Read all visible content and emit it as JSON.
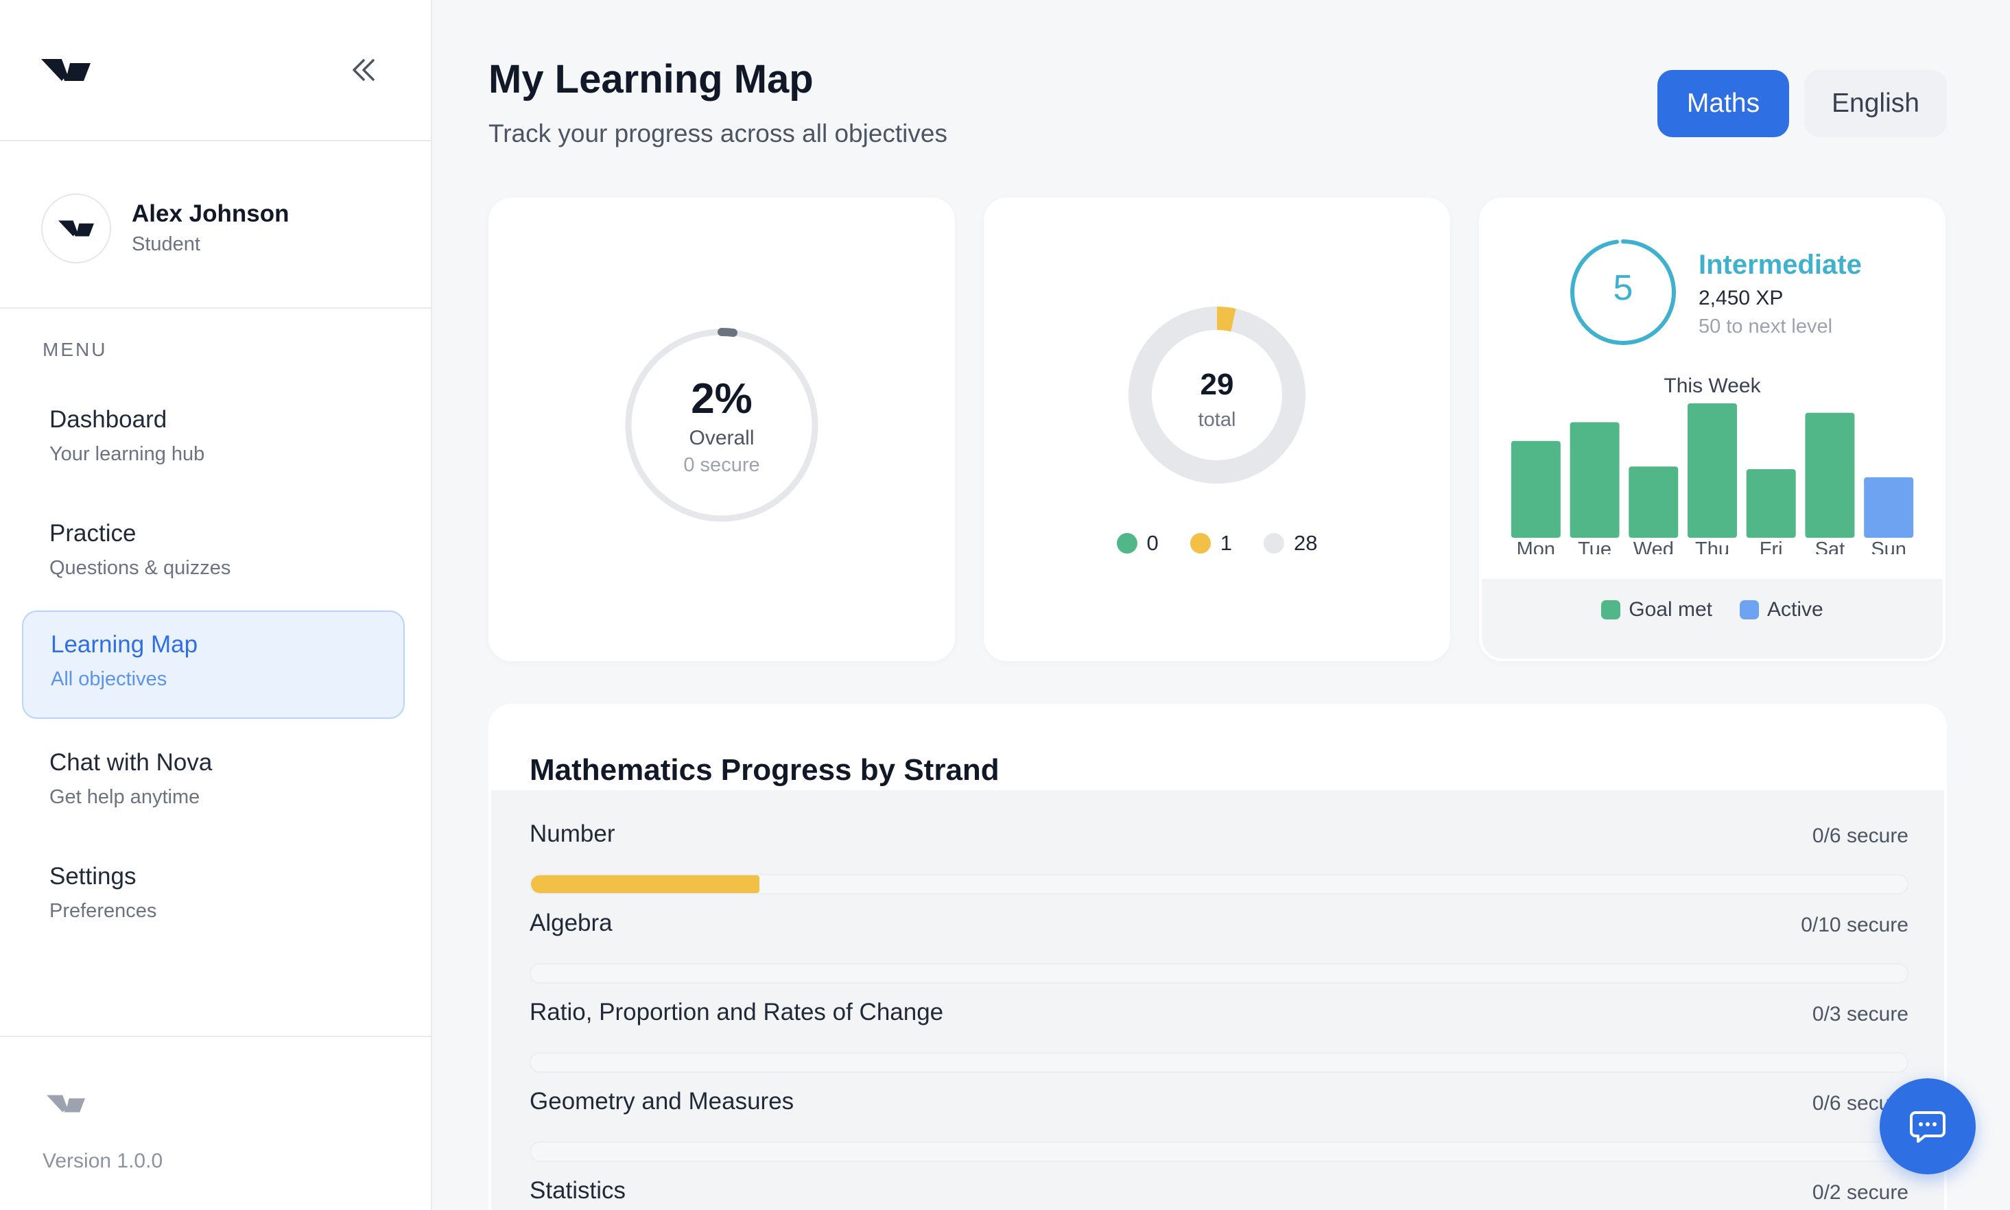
{
  "brand": {
    "logo_icon": "brand-logo-icon",
    "version": "Version 1.0.0"
  },
  "user": {
    "name": "Alex Johnson",
    "role": "Student"
  },
  "menu": {
    "label": "MENU",
    "items": [
      {
        "title": "Dashboard",
        "subtitle": "Your learning hub",
        "active": false
      },
      {
        "title": "Practice",
        "subtitle": "Questions & quizzes",
        "active": false
      },
      {
        "title": "Learning Map",
        "subtitle": "All objectives",
        "active": true
      },
      {
        "title": "Chat with Nova",
        "subtitle": "Get help anytime",
        "active": false
      },
      {
        "title": "Settings",
        "subtitle": "Preferences",
        "active": false
      }
    ]
  },
  "header": {
    "title": "My Learning Map",
    "subtitle": "Track your progress across all objectives",
    "subjects": [
      {
        "label": "Maths",
        "selected": true
      },
      {
        "label": "English",
        "selected": false
      }
    ]
  },
  "overall": {
    "value": "2%",
    "label": "Overall",
    "secure": "0 secure",
    "progress": 0.02
  },
  "objectives": {
    "total": "29",
    "total_label": "total",
    "breakdown": [
      {
        "count": "0",
        "color": "#52b788",
        "value": 0
      },
      {
        "count": "1",
        "color": "#f2bf47",
        "value": 1
      },
      {
        "count": "28",
        "color": "#e5e7eb",
        "value": 28
      }
    ]
  },
  "level": {
    "number": "5",
    "name": "Intermediate",
    "xp": "2,450 XP",
    "next": "50 to next level",
    "progress": 0.98
  },
  "week": {
    "title": "This Week",
    "legend": [
      {
        "label": "Goal met",
        "color": "#52b788"
      },
      {
        "label": "Active",
        "color": "#6ea3f2"
      }
    ],
    "chart_data": {
      "type": "bar",
      "categories": [
        "Mon",
        "Tue",
        "Wed",
        "Thu",
        "Fri",
        "Sat",
        "Sun"
      ],
      "values": [
        72,
        86,
        53,
        100,
        51,
        93,
        45
      ],
      "status": [
        "goal",
        "goal",
        "goal",
        "goal",
        "goal",
        "goal",
        "active"
      ],
      "ylim": [
        0,
        100
      ]
    }
  },
  "strands": {
    "title": "Mathematics Progress by Strand",
    "items": [
      {
        "name": "Number",
        "count": "0/6 secure",
        "progress": 0.166
      },
      {
        "name": "Algebra",
        "count": "0/10 secure",
        "progress": 0
      },
      {
        "name": "Ratio, Proportion and Rates of Change",
        "count": "0/3 secure",
        "progress": 0
      },
      {
        "name": "Geometry and Measures",
        "count": "0/6 secure",
        "progress": 0
      },
      {
        "name": "Statistics",
        "count": "0/2 secure",
        "progress": 0
      }
    ]
  },
  "chat_fab": {
    "icon": "chat-bubble-icon"
  }
}
